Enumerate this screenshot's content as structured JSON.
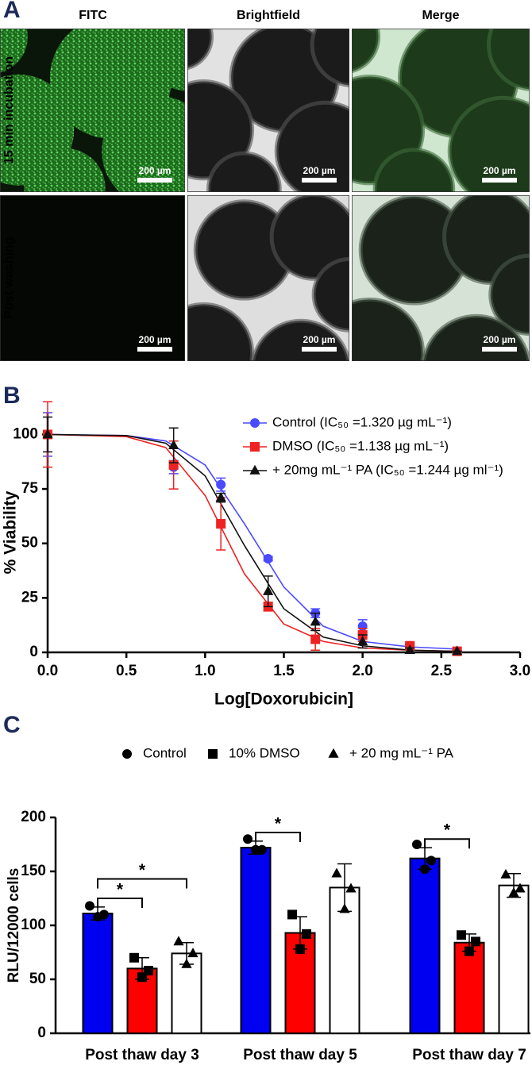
{
  "panel_a": {
    "label": "A",
    "columns": [
      "FITC",
      "Brightfield",
      "Merge"
    ],
    "rows": [
      "15 min incubation",
      "Post washing"
    ],
    "scale_bars": [
      "200 µm",
      "200 µm",
      "200 µm",
      "200 µm",
      "200 µm",
      "200 µm"
    ]
  },
  "chart_data": [
    {
      "type": "scatter",
      "panel_label": "B",
      "x_label": "Log[Doxorubicin]",
      "y_label": "% Viability",
      "x": [
        0,
        0.8,
        1.1,
        1.4,
        1.7,
        2.0,
        2.3,
        2.6
      ],
      "fit_x": [
        0,
        0.5,
        0.75,
        1.0,
        1.25,
        1.5,
        1.75,
        2.0,
        2.3,
        2.6
      ],
      "series": [
        {
          "name": "Control (IC₅₀ =1.320 µg mL⁻¹)",
          "color": "#4a4aff",
          "marker": "circle",
          "values": [
            100,
            85,
            77,
            43,
            18,
            12,
            3,
            0.5
          ],
          "errors": [
            10,
            3,
            3,
            1,
            2,
            3,
            1,
            0.5
          ],
          "fit_values": [
            100,
            99.5,
            97,
            86,
            59,
            30,
            12,
            5,
            2.5,
            1.5
          ]
        },
        {
          "name": "DMSO (IC₅₀ =1.138 µg mL⁻¹)",
          "color": "#ee2222",
          "marker": "square",
          "values": [
            100,
            86,
            59,
            21,
            6,
            8,
            3,
            0.5
          ],
          "errors": [
            15,
            11,
            12,
            2,
            5,
            3,
            1,
            0
          ],
          "fit_values": [
            100,
            99,
            94,
            72,
            36,
            13,
            5,
            2,
            1,
            0.5
          ]
        },
        {
          "name": "+ 20mg mL⁻¹ PA (IC₅₀ =1.244 µg ml⁻¹)",
          "color": "#111111",
          "marker": "triangle",
          "values": [
            100,
            95,
            71,
            28,
            14,
            5,
            1,
            0.5
          ],
          "errors": [
            8,
            8,
            2,
            7,
            4,
            3,
            1,
            0
          ],
          "fit_values": [
            100,
            99.5,
            96,
            81,
            49,
            20,
            7,
            3,
            1,
            0.5
          ]
        }
      ],
      "xlim": [
        0,
        3
      ],
      "xticks": [
        {
          "value": 0,
          "label": "0.0"
        },
        {
          "value": 0.5,
          "label": "0.5"
        },
        {
          "value": 1,
          "label": "1.0"
        },
        {
          "value": 1.5,
          "label": "1.5"
        },
        {
          "value": 2,
          "label": "2.0"
        },
        {
          "value": 2.5,
          "label": "2.5"
        },
        {
          "value": 3,
          "label": "3.0"
        }
      ],
      "ylim": [
        0,
        110
      ],
      "yticks": [
        0,
        25,
        50,
        75,
        100
      ]
    },
    {
      "type": "bar",
      "panel_label": "C",
      "y_label": "RLU/12000 cells",
      "categories": [
        "Post thaw day 3",
        "Post thaw day 5",
        "Post thaw day 7"
      ],
      "series": [
        {
          "name": "Control",
          "color": "#0000f0",
          "marker": "circle",
          "values": [
            111,
            172,
            162
          ],
          "errors": [
            6,
            6,
            10
          ],
          "points": [
            [
              118,
              110,
              108
            ],
            [
              180,
              170,
              170
            ],
            [
              175,
              160,
              152
            ]
          ]
        },
        {
          "name": "10% DMSO",
          "color": "#ff0000",
          "marker": "square",
          "values": [
            60,
            93,
            84
          ],
          "errors": [
            10,
            15,
            8
          ],
          "points": [
            [
              70,
              58,
              52
            ],
            [
              110,
              92,
              78
            ],
            [
              91,
              85,
              76
            ]
          ]
        },
        {
          "name": "+ 20 mg mL⁻¹ PA",
          "color": "#ffffff",
          "marker": "triangle",
          "values": [
            74,
            135,
            137
          ],
          "errors": [
            10,
            22,
            11
          ],
          "points": [
            [
              85,
              74,
              64
            ],
            [
              148,
              134,
              115
            ],
            [
              147,
              134,
              130
            ]
          ]
        }
      ],
      "significance": [
        {
          "label": "*",
          "group": 0,
          "pair": [
            0,
            1
          ]
        },
        {
          "label": "*",
          "group": 0,
          "pair": [
            0,
            2
          ]
        },
        {
          "label": "*",
          "group": 1,
          "pair": [
            0,
            1
          ]
        },
        {
          "label": "*",
          "group": 2,
          "pair": [
            0,
            1
          ]
        }
      ],
      "ylim": [
        0,
        200
      ],
      "yticks": [
        0,
        50,
        100,
        150,
        200
      ]
    }
  ]
}
